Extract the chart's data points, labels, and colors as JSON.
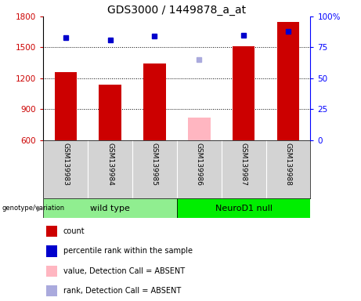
{
  "title": "GDS3000 / 1449878_a_at",
  "samples": [
    "GSM139983",
    "GSM139984",
    "GSM139985",
    "GSM139986",
    "GSM139987",
    "GSM139988"
  ],
  "count_values": [
    1260,
    1140,
    1340,
    null,
    1510,
    1750
  ],
  "count_absent_values": [
    null,
    null,
    null,
    820,
    null,
    null
  ],
  "rank_values": [
    83,
    81,
    84,
    null,
    85,
    88
  ],
  "rank_absent_values": [
    null,
    null,
    null,
    65,
    null,
    null
  ],
  "ylim_left": [
    600,
    1800
  ],
  "ylim_right": [
    0,
    100
  ],
  "yticks_left": [
    600,
    900,
    1200,
    1500,
    1800
  ],
  "yticks_right": [
    0,
    25,
    50,
    75,
    100
  ],
  "bar_color": "#CC0000",
  "bar_absent_color": "#FFB6C1",
  "rank_color": "#0000CC",
  "rank_absent_color": "#AAAADD",
  "bar_width": 0.5,
  "background_color": "#ffffff",
  "label_area_color": "#d3d3d3",
  "wt_color": "#90EE90",
  "nd_color": "#00EE00",
  "legend_items": [
    [
      "#CC0000",
      "count"
    ],
    [
      "#0000CC",
      "percentile rank within the sample"
    ],
    [
      "#FFB6C1",
      "value, Detection Call = ABSENT"
    ],
    [
      "#AAAADD",
      "rank, Detection Call = ABSENT"
    ]
  ]
}
